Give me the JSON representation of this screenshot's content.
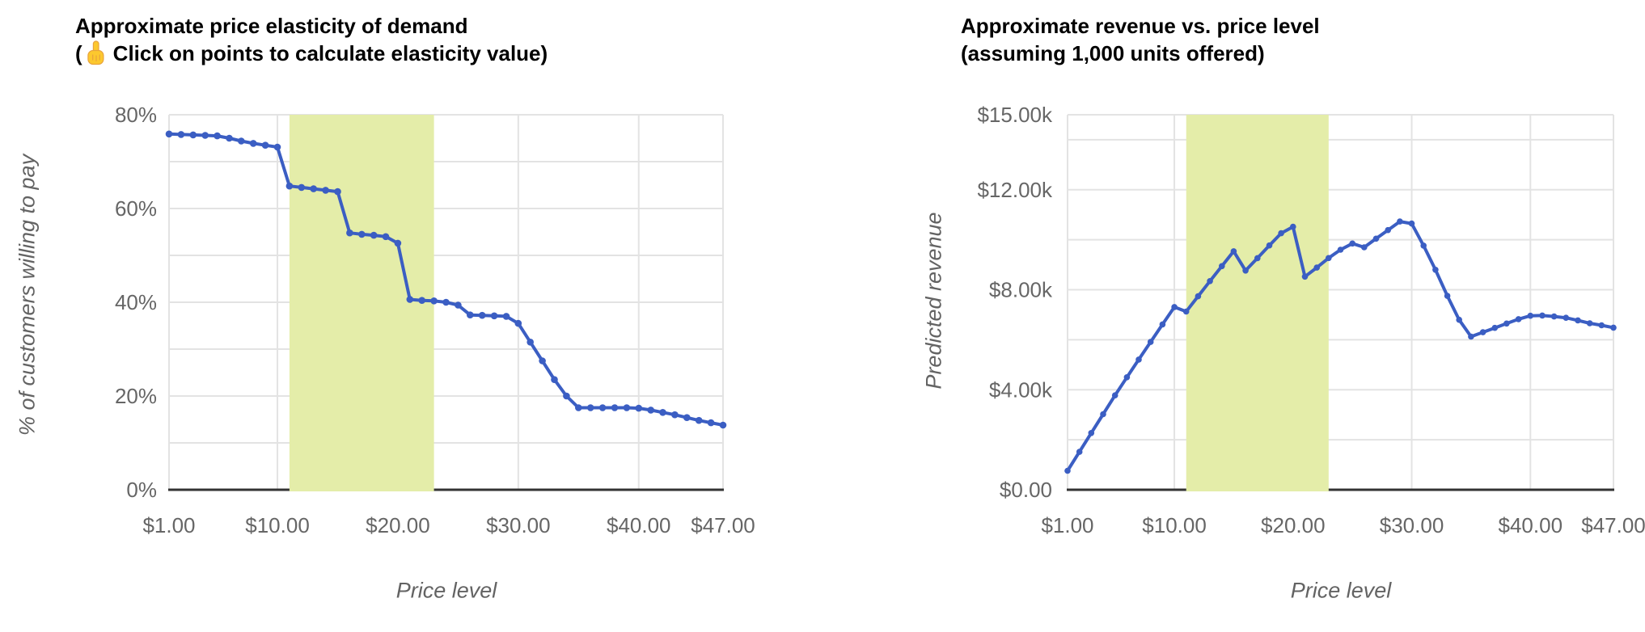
{
  "page": {
    "background": "#ffffff"
  },
  "chart_data": [
    {
      "type": "line",
      "title": "Approximate price elasticity of demand",
      "subtitle": "(👆 Click on points to calculate elasticity value)",
      "subtitle_parts": {
        "open": "(",
        "icon": "pointing-up-emoji",
        "rest": "Click on points to calculate elasticity value)"
      },
      "xlabel": "Price level",
      "ylabel": "% of customers willing to pay",
      "x": [
        1,
        2,
        3,
        4,
        5,
        6,
        7,
        8,
        9,
        10,
        11,
        12,
        13,
        14,
        15,
        16,
        17,
        18,
        19,
        20,
        21,
        22,
        23,
        24,
        25,
        26,
        27,
        28,
        29,
        30,
        31,
        32,
        33,
        34,
        35,
        36,
        37,
        38,
        39,
        40,
        41,
        42,
        43,
        44,
        45,
        46,
        47
      ],
      "values": [
        75.9,
        75.8,
        75.7,
        75.6,
        75.5,
        75.0,
        74.4,
        73.9,
        73.5,
        73.1,
        64.8,
        64.5,
        64.2,
        63.9,
        63.6,
        54.8,
        54.5,
        54.3,
        54.0,
        52.6,
        40.6,
        40.4,
        40.3,
        40.0,
        39.4,
        37.3,
        37.2,
        37.1,
        37.0,
        35.5,
        31.5,
        27.5,
        23.5,
        20.0,
        17.5,
        17.5,
        17.5,
        17.5,
        17.5,
        17.4,
        17.0,
        16.5,
        16.0,
        15.4,
        14.8,
        14.3,
        13.8
      ],
      "xlim": [
        1,
        47
      ],
      "ylim": [
        0,
        80
      ],
      "x_ticks": [
        {
          "v": 1,
          "label": "$1.00"
        },
        {
          "v": 10,
          "label": "$10.00"
        },
        {
          "v": 20,
          "label": "$20.00"
        },
        {
          "v": 30,
          "label": "$30.00"
        },
        {
          "v": 40,
          "label": "$40.00"
        },
        {
          "v": 47,
          "label": "$47.00"
        }
      ],
      "y_ticks": [
        {
          "v": 0,
          "label": "0%"
        },
        {
          "v": 20,
          "label": "20%"
        },
        {
          "v": 40,
          "label": "40%"
        },
        {
          "v": 60,
          "label": "60%"
        },
        {
          "v": 80,
          "label": "80%"
        }
      ],
      "y_gridlines": [
        10,
        20,
        30,
        40,
        50,
        60,
        70,
        80
      ],
      "highlight_band": {
        "from": 11,
        "to": 23,
        "color": "#e4eda9"
      },
      "line_color": "#3b5ec3",
      "grid_color": "#e3e3e3",
      "axis_color": "#333333",
      "tick_color": "#666666",
      "grid": true,
      "legend": "none",
      "points_clickable": true
    },
    {
      "type": "line",
      "title": "Approximate revenue vs. price level",
      "subtitle": "(assuming 1,000 units offered)",
      "xlabel": "Price level",
      "ylabel": "Predicted revenue",
      "x": [
        1,
        2,
        3,
        4,
        5,
        6,
        7,
        8,
        9,
        10,
        11,
        12,
        13,
        14,
        15,
        16,
        17,
        18,
        19,
        20,
        21,
        22,
        23,
        24,
        25,
        26,
        27,
        28,
        29,
        30,
        31,
        32,
        33,
        34,
        35,
        36,
        37,
        38,
        39,
        40,
        41,
        42,
        43,
        44,
        45,
        46,
        47
      ],
      "values": [
        759,
        1516,
        2271,
        3024,
        3775,
        4500,
        5208,
        5912,
        6615,
        7310,
        7128,
        7740,
        8346,
        8946,
        9540,
        8768,
        9265,
        9774,
        10260,
        10520,
        8526,
        8888,
        9269,
        9600,
        9850,
        9698,
        10044,
        10388,
        10730,
        10650,
        9765,
        8800,
        7755,
        6800,
        6125,
        6300,
        6475,
        6650,
        6825,
        6960,
        6970,
        6930,
        6880,
        6776,
        6660,
        6578,
        6486
      ],
      "xlim": [
        1,
        47
      ],
      "ylim": [
        0,
        15000
      ],
      "x_ticks": [
        {
          "v": 1,
          "label": "$1.00"
        },
        {
          "v": 10,
          "label": "$10.00"
        },
        {
          "v": 20,
          "label": "$20.00"
        },
        {
          "v": 30,
          "label": "$30.00"
        },
        {
          "v": 40,
          "label": "$40.00"
        },
        {
          "v": 47,
          "label": "$47.00"
        }
      ],
      "y_ticks": [
        {
          "v": 0,
          "label": "$0.00"
        },
        {
          "v": 4000,
          "label": "$4.00k"
        },
        {
          "v": 8000,
          "label": "$8.00k"
        },
        {
          "v": 12000,
          "label": "$12.00k"
        },
        {
          "v": 15000,
          "label": "$15.00k"
        }
      ],
      "y_gridlines": [
        2000,
        4000,
        6000,
        8000,
        10000,
        12000,
        14000,
        15000
      ],
      "highlight_band": {
        "from": 11,
        "to": 23,
        "color": "#e4eda9"
      },
      "line_color": "#3b5ec3",
      "grid_color": "#e3e3e3",
      "axis_color": "#333333",
      "tick_color": "#666666",
      "grid": true,
      "legend": "none",
      "points_clickable": false
    }
  ]
}
